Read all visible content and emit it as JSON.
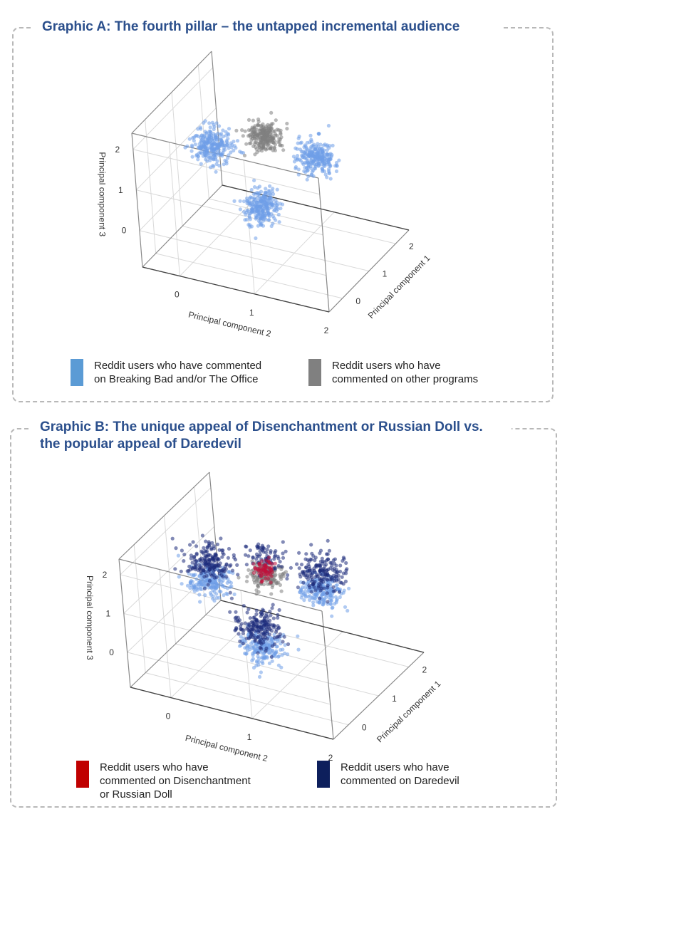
{
  "graphic_a": {
    "title": "Graphic A: The fourth pillar – the untapped incremental audience",
    "legend": [
      {
        "label": "Reddit users who have commented\non Breaking Bad  and/or The Office",
        "color": "#5b9bd5"
      },
      {
        "label": "Reddit users who have\ncommented on other programs",
        "color": "#808080"
      }
    ]
  },
  "graphic_b": {
    "title": "Graphic B: The unique appeal of Disenchantment or Russian Doll vs.\nthe popular appeal of Daredevil",
    "legend": [
      {
        "label": "Reddit users who have\ncommented on Disenchantment\nor Russian Doll",
        "color": "#c00000"
      },
      {
        "label": "Reddit users who have\ncommented on Daredevil",
        "color": "#0d1f5c"
      }
    ]
  },
  "chart_data": [
    {
      "type": "scatter",
      "projection": "3d",
      "title": "Graphic A: The fourth pillar – the untapped incremental audience",
      "xlabel": "Principal component 2",
      "ylabel": "Principal component 1",
      "zlabel": "Principal component 3",
      "x_ticks": [
        "0",
        "1",
        "2"
      ],
      "y_ticks": [
        "0",
        "1",
        "2"
      ],
      "z_ticks": [
        "0",
        "1",
        "2"
      ],
      "xlim": [
        -0.5,
        2.0
      ],
      "ylim": [
        -0.5,
        2.5
      ],
      "zlim": [
        -0.9,
        2.4
      ],
      "series": [
        {
          "name": "Reddit users who have commented on Breaking Bad  and/or The Office",
          "color": "#6f9ee8",
          "clusters": [
            {
              "x": 0.0,
              "y": 1.0,
              "z": 1.3,
              "spread": 0.12,
              "n": 260
            },
            {
              "x": 1.0,
              "y": 2.0,
              "z": 0.8,
              "spread": 0.12,
              "n": 260
            },
            {
              "x": 1.0,
              "y": 0.0,
              "z": 0.9,
              "spread": 0.12,
              "n": 260
            }
          ]
        },
        {
          "name": "Reddit users who have commented on other programs",
          "color": "#808080",
          "clusters": [
            {
              "x": 0.8,
              "y": 0.8,
              "z": 2.0,
              "spread": 0.1,
              "n": 240
            }
          ]
        }
      ]
    },
    {
      "type": "scatter",
      "projection": "3d",
      "title": "Graphic B: The unique appeal of Disenchantment or Russian Doll vs. the popular appeal of Daredevil",
      "xlabel": "Principal component 2",
      "ylabel": "Principal component 1",
      "zlabel": "Principal component 3",
      "x_ticks": [
        "0",
        "1",
        "2"
      ],
      "y_ticks": [
        "0",
        "1",
        "2"
      ],
      "z_ticks": [
        "0",
        "1",
        "2"
      ],
      "xlim": [
        -0.5,
        2.0
      ],
      "ylim": [
        -0.5,
        2.5
      ],
      "zlim": [
        -0.9,
        2.4
      ],
      "series": [
        {
          "name": "Breaking Bad / The Office",
          "color": "#6f9ee8",
          "clusters": [
            {
              "x": 0.0,
              "y": 1.0,
              "z": 1.0,
              "spread": 0.12,
              "n": 200
            },
            {
              "x": 1.0,
              "y": 2.0,
              "z": 0.5,
              "spread": 0.12,
              "n": 200
            },
            {
              "x": 1.0,
              "y": 0.0,
              "z": 0.6,
              "spread": 0.12,
              "n": 200
            }
          ]
        },
        {
          "name": "Other programs",
          "color": "#808080",
          "clusters": [
            {
              "x": 0.8,
              "y": 0.8,
              "z": 1.7,
              "spread": 0.09,
              "n": 150
            }
          ]
        },
        {
          "name": "Reddit users who have commented on Daredevil",
          "color": "#1c2a7a",
          "clusters": [
            {
              "x": 0.0,
              "y": 1.0,
              "z": 1.5,
              "spread": 0.13,
              "n": 180
            },
            {
              "x": 1.0,
              "y": 2.0,
              "z": 1.0,
              "spread": 0.13,
              "n": 180
            },
            {
              "x": 1.0,
              "y": 0.0,
              "z": 1.1,
              "spread": 0.13,
              "n": 180
            },
            {
              "x": 0.8,
              "y": 0.8,
              "z": 2.2,
              "spread": 0.1,
              "n": 70
            }
          ]
        },
        {
          "name": "Reddit users who have commented on Disenchantment or Russian Doll",
          "color": "#c0103a",
          "clusters": [
            {
              "x": 0.8,
              "y": 0.8,
              "z": 1.85,
              "spread": 0.06,
              "n": 70
            }
          ]
        }
      ]
    }
  ]
}
